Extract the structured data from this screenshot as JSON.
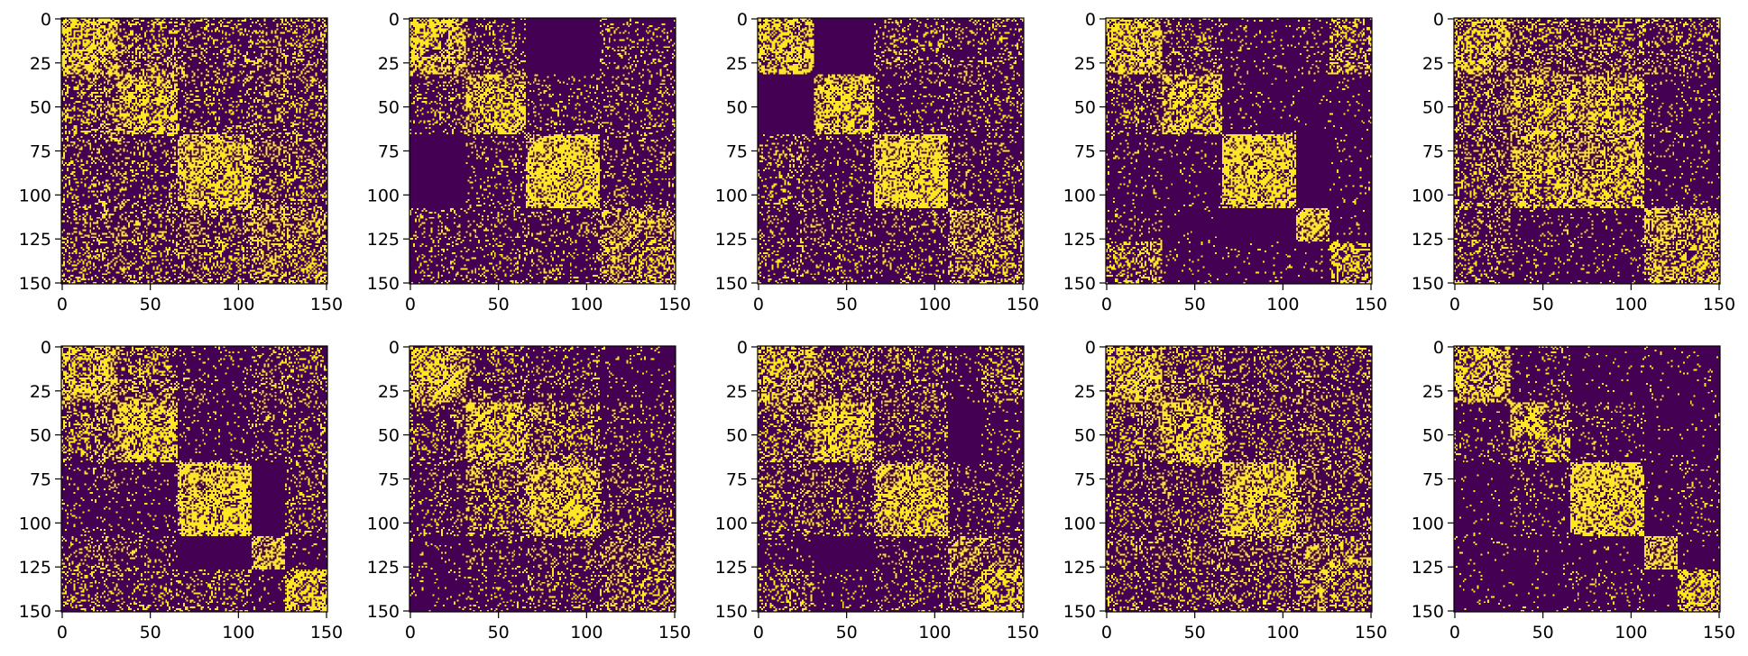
{
  "chart_data": {
    "type": "heatmap",
    "description": "Ten binary adjacency-matrix images (151x151) arranged in a 2x5 grid; each shows block structure (communities) rendered with viridis endpoints.",
    "colors": {
      "zero": "#440154",
      "one": "#fde725"
    },
    "matrix_size": 151,
    "xlim": [
      0,
      150
    ],
    "ylim": [
      150,
      0
    ],
    "x_ticks": [
      "0",
      "50",
      "100",
      "150"
    ],
    "y_ticks": [
      "0",
      "25",
      "50",
      "75",
      "100",
      "125",
      "150"
    ],
    "panels": [
      {
        "id": "r1c1",
        "blocks": [
          [
            0,
            32
          ],
          [
            32,
            66
          ],
          [
            66,
            108
          ],
          [
            108,
            151
          ]
        ],
        "density": [
          [
            0.62,
            0.32,
            0.22,
            0.26
          ],
          [
            0.32,
            0.58,
            0.2,
            0.24
          ],
          [
            0.22,
            0.2,
            0.64,
            0.3
          ],
          [
            0.26,
            0.24,
            0.3,
            0.42
          ]
        ],
        "noise": 0.06
      },
      {
        "id": "r1c2",
        "blocks": [
          [
            0,
            32
          ],
          [
            32,
            66
          ],
          [
            66,
            108
          ],
          [
            108,
            151
          ]
        ],
        "density": [
          [
            0.6,
            0.18,
            0.0,
            0.14
          ],
          [
            0.18,
            0.6,
            0.12,
            0.16
          ],
          [
            0.0,
            0.12,
            0.66,
            0.14
          ],
          [
            0.14,
            0.16,
            0.14,
            0.4
          ]
        ],
        "noise": 0.05
      },
      {
        "id": "r1c3",
        "blocks": [
          [
            0,
            32
          ],
          [
            32,
            66
          ],
          [
            66,
            108
          ],
          [
            108,
            151
          ]
        ],
        "density": [
          [
            0.62,
            0.0,
            0.18,
            0.16
          ],
          [
            0.0,
            0.64,
            0.1,
            0.14
          ],
          [
            0.18,
            0.1,
            0.66,
            0.14
          ],
          [
            0.16,
            0.14,
            0.14,
            0.38
          ]
        ],
        "noise": 0.05
      },
      {
        "id": "r1c4",
        "blocks": [
          [
            0,
            32
          ],
          [
            32,
            66
          ],
          [
            66,
            108
          ],
          [
            108,
            127
          ],
          [
            127,
            151
          ]
        ],
        "density": [
          [
            0.6,
            0.2,
            0.08,
            0.08,
            0.36
          ],
          [
            0.2,
            0.58,
            0.04,
            0.02,
            0.04
          ],
          [
            0.08,
            0.04,
            0.7,
            0.0,
            0.04
          ],
          [
            0.08,
            0.02,
            0.0,
            0.62,
            0.04
          ],
          [
            0.36,
            0.04,
            0.04,
            0.04,
            0.52
          ]
        ],
        "noise": 0.04
      },
      {
        "id": "r1c5",
        "blocks": [
          [
            0,
            32
          ],
          [
            32,
            108
          ],
          [
            108,
            151
          ]
        ],
        "density": [
          [
            0.58,
            0.3,
            0.22
          ],
          [
            0.3,
            0.52,
            0.08
          ],
          [
            0.22,
            0.08,
            0.5
          ]
        ],
        "noise": 0.05
      },
      {
        "id": "r2c1",
        "blocks": [
          [
            0,
            32
          ],
          [
            32,
            66
          ],
          [
            66,
            108
          ],
          [
            108,
            127
          ],
          [
            127,
            151
          ]
        ],
        "density": [
          [
            0.6,
            0.34,
            0.08,
            0.22,
            0.2
          ],
          [
            0.34,
            0.6,
            0.06,
            0.16,
            0.16
          ],
          [
            0.08,
            0.06,
            0.68,
            0.0,
            0.2
          ],
          [
            0.22,
            0.16,
            0.0,
            0.58,
            0.06
          ],
          [
            0.2,
            0.16,
            0.2,
            0.06,
            0.6
          ]
        ],
        "noise": 0.05
      },
      {
        "id": "r2c2",
        "blocks": [
          [
            0,
            32
          ],
          [
            32,
            66
          ],
          [
            66,
            108
          ],
          [
            108,
            151
          ]
        ],
        "density": [
          [
            0.6,
            0.22,
            0.14,
            0.06
          ],
          [
            0.22,
            0.58,
            0.32,
            0.12
          ],
          [
            0.14,
            0.32,
            0.6,
            0.18
          ],
          [
            0.06,
            0.12,
            0.18,
            0.32
          ]
        ],
        "noise": 0.05
      },
      {
        "id": "r2c3",
        "blocks": [
          [
            0,
            32
          ],
          [
            32,
            66
          ],
          [
            66,
            108
          ],
          [
            108,
            127
          ],
          [
            127,
            151
          ]
        ],
        "density": [
          [
            0.5,
            0.3,
            0.22,
            0.06,
            0.28
          ],
          [
            0.3,
            0.62,
            0.18,
            0.0,
            0.08
          ],
          [
            0.22,
            0.18,
            0.6,
            0.1,
            0.12
          ],
          [
            0.06,
            0.0,
            0.1,
            0.42,
            0.3
          ],
          [
            0.28,
            0.08,
            0.12,
            0.3,
            0.56
          ]
        ],
        "noise": 0.05
      },
      {
        "id": "r2c4",
        "blocks": [
          [
            0,
            32
          ],
          [
            32,
            66
          ],
          [
            66,
            108
          ],
          [
            108,
            151
          ]
        ],
        "density": [
          [
            0.6,
            0.32,
            0.2,
            0.2
          ],
          [
            0.32,
            0.58,
            0.22,
            0.22
          ],
          [
            0.2,
            0.22,
            0.62,
            0.24
          ],
          [
            0.2,
            0.22,
            0.24,
            0.4
          ]
        ],
        "noise": 0.05
      },
      {
        "id": "r2c5",
        "blocks": [
          [
            0,
            32
          ],
          [
            32,
            52
          ],
          [
            52,
            66
          ],
          [
            66,
            108
          ],
          [
            108,
            127
          ],
          [
            127,
            151
          ]
        ],
        "density": [
          [
            0.62,
            0.08,
            0.1,
            0.02,
            0.06,
            0.04
          ],
          [
            0.08,
            0.64,
            0.3,
            0.1,
            0.02,
            0.02
          ],
          [
            0.1,
            0.3,
            0.5,
            0.08,
            0.02,
            0.02
          ],
          [
            0.02,
            0.1,
            0.08,
            0.7,
            0.04,
            0.1
          ],
          [
            0.06,
            0.02,
            0.02,
            0.04,
            0.6,
            0.02
          ],
          [
            0.04,
            0.02,
            0.02,
            0.1,
            0.02,
            0.6
          ]
        ],
        "noise": 0.04
      }
    ]
  }
}
